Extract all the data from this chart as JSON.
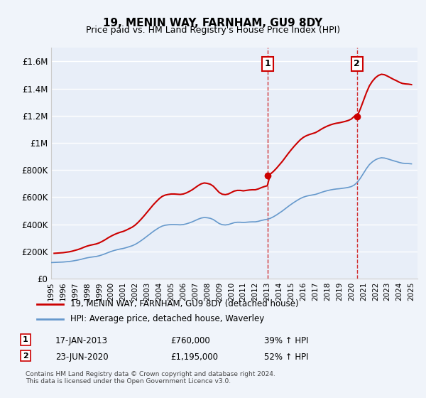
{
  "title": "19, MENIN WAY, FARNHAM, GU9 8DY",
  "subtitle": "Price paid vs. HM Land Registry's House Price Index (HPI)",
  "ylabel_ticks": [
    "£0",
    "£200K",
    "£400K",
    "£600K",
    "£800K",
    "£1M",
    "£1.2M",
    "£1.4M",
    "£1.6M"
  ],
  "ytick_values": [
    0,
    200000,
    400000,
    600000,
    800000,
    1000000,
    1200000,
    1400000,
    1600000
  ],
  "ylim": [
    0,
    1700000
  ],
  "xlim_start": 1995.0,
  "xlim_end": 2025.5,
  "legend_line1": "19, MENIN WAY, FARNHAM, GU9 8DY (detached house)",
  "legend_line2": "HPI: Average price, detached house, Waverley",
  "sale1_date": "17-JAN-2013",
  "sale1_price": "£760,000",
  "sale1_hpi": "39% ↑ HPI",
  "sale2_date": "23-JUN-2020",
  "sale2_price": "£1,195,000",
  "sale2_hpi": "52% ↑ HPI",
  "footnote": "Contains HM Land Registry data © Crown copyright and database right 2024.\nThis data is licensed under the Open Government Licence v3.0.",
  "background_color": "#f0f4fa",
  "plot_bg_color": "#e8eef8",
  "red_line_color": "#cc0000",
  "blue_line_color": "#6699cc",
  "vertical_line_color": "#cc0000",
  "grid_color": "#ffffff",
  "annotation_box_color": "#cc0000",
  "hpi_years": [
    1995.0,
    1995.25,
    1995.5,
    1995.75,
    1996.0,
    1996.25,
    1996.5,
    1996.75,
    1997.0,
    1997.25,
    1997.5,
    1997.75,
    1998.0,
    1998.25,
    1998.5,
    1998.75,
    1999.0,
    1999.25,
    1999.5,
    1999.75,
    2000.0,
    2000.25,
    2000.5,
    2000.75,
    2001.0,
    2001.25,
    2001.5,
    2001.75,
    2002.0,
    2002.25,
    2002.5,
    2002.75,
    2003.0,
    2003.25,
    2003.5,
    2003.75,
    2004.0,
    2004.25,
    2004.5,
    2004.75,
    2005.0,
    2005.25,
    2005.5,
    2005.75,
    2006.0,
    2006.25,
    2006.5,
    2006.75,
    2007.0,
    2007.25,
    2007.5,
    2007.75,
    2008.0,
    2008.25,
    2008.5,
    2008.75,
    2009.0,
    2009.25,
    2009.5,
    2009.75,
    2010.0,
    2010.25,
    2010.5,
    2010.75,
    2011.0,
    2011.25,
    2011.5,
    2011.75,
    2012.0,
    2012.25,
    2012.5,
    2012.75,
    2013.0,
    2013.25,
    2013.5,
    2013.75,
    2014.0,
    2014.25,
    2014.5,
    2014.75,
    2015.0,
    2015.25,
    2015.5,
    2015.75,
    2016.0,
    2016.25,
    2016.5,
    2016.75,
    2017.0,
    2017.25,
    2017.5,
    2017.75,
    2018.0,
    2018.25,
    2018.5,
    2018.75,
    2019.0,
    2019.25,
    2019.5,
    2019.75,
    2020.0,
    2020.25,
    2020.5,
    2020.75,
    2021.0,
    2021.25,
    2021.5,
    2021.75,
    2022.0,
    2022.25,
    2022.5,
    2022.75,
    2023.0,
    2023.25,
    2023.5,
    2023.75,
    2024.0,
    2024.25,
    2024.5,
    2024.75,
    2025.0
  ],
  "hpi_values": [
    118000,
    119000,
    120000,
    121000,
    122000,
    124000,
    126000,
    129000,
    133000,
    137000,
    142000,
    148000,
    153000,
    157000,
    160000,
    163000,
    168000,
    175000,
    183000,
    192000,
    200000,
    207000,
    213000,
    218000,
    222000,
    228000,
    235000,
    242000,
    252000,
    265000,
    280000,
    296000,
    313000,
    330000,
    347000,
    362000,
    376000,
    387000,
    393000,
    396000,
    398000,
    398000,
    397000,
    396000,
    398000,
    403000,
    410000,
    418000,
    428000,
    438000,
    446000,
    450000,
    448000,
    444000,
    435000,
    420000,
    405000,
    397000,
    395000,
    398000,
    405000,
    412000,
    415000,
    415000,
    413000,
    415000,
    417000,
    418000,
    418000,
    422000,
    428000,
    433000,
    437000,
    444000,
    455000,
    468000,
    483000,
    498000,
    515000,
    532000,
    548000,
    563000,
    577000,
    590000,
    600000,
    607000,
    612000,
    616000,
    620000,
    627000,
    635000,
    642000,
    648000,
    653000,
    657000,
    660000,
    662000,
    665000,
    668000,
    672000,
    678000,
    690000,
    710000,
    740000,
    775000,
    810000,
    840000,
    860000,
    875000,
    885000,
    890000,
    888000,
    882000,
    875000,
    868000,
    862000,
    855000,
    850000,
    848000,
    847000,
    845000
  ],
  "property_years": [
    1995.05,
    2013.05,
    2020.46
  ],
  "property_values": [
    185000,
    760000,
    1195000
  ],
  "sale1_x": 2013.05,
  "sale2_x": 2020.46,
  "marker1_x": 2013.05,
  "marker1_y": 760000,
  "marker2_x": 2020.46,
  "marker2_y": 1195000,
  "vline1_x": 2013.05,
  "vline2_x": 2020.46
}
